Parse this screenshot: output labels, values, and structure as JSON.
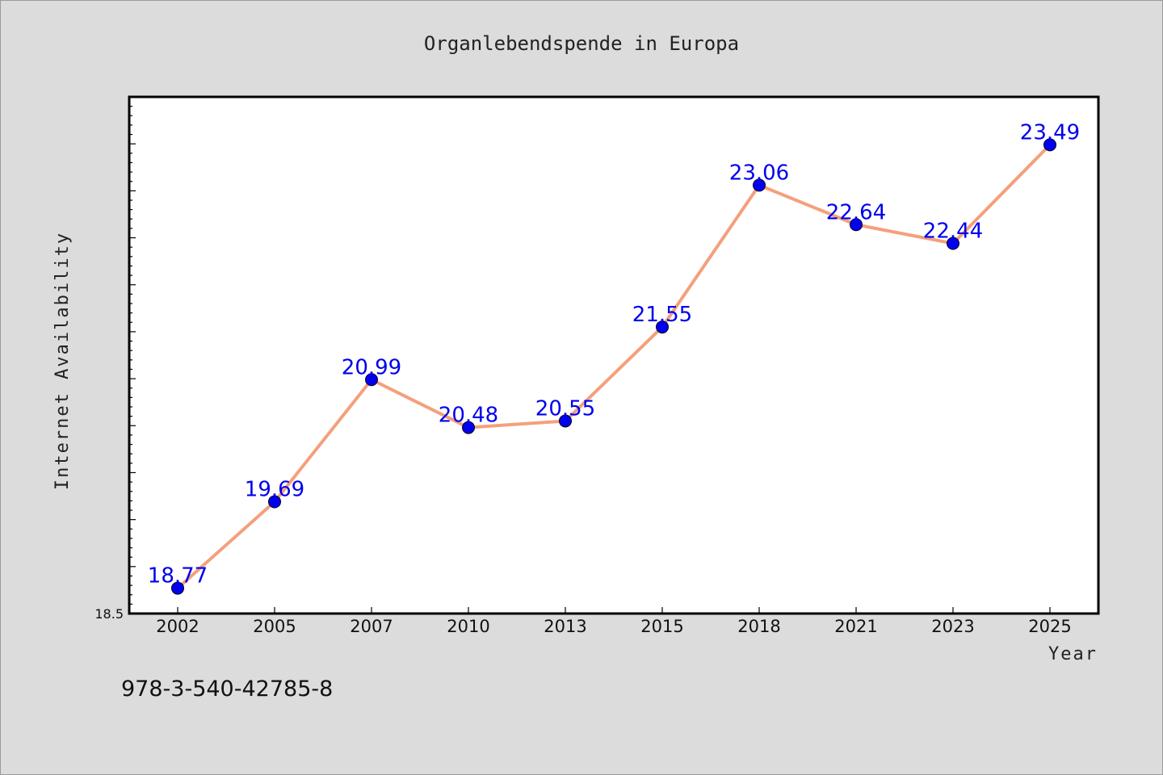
{
  "chart_data": {
    "type": "line",
    "title": "Organlebendspende in Europa",
    "xlabel": "Year",
    "ylabel": "Internet Availability",
    "categories": [
      "2002",
      "2005",
      "2007",
      "2010",
      "2013",
      "2015",
      "2018",
      "2021",
      "2023",
      "2025"
    ],
    "series": [
      {
        "values": [
          18.77,
          19.69,
          20.99,
          20.48,
          20.55,
          21.55,
          23.06,
          22.64,
          22.44,
          23.49
        ],
        "labels": [
          "18.77",
          "19.69",
          "20.99",
          "20.48",
          "20.55",
          "21.55",
          "23.06",
          "22.64",
          "22.44",
          "23.49"
        ]
      }
    ],
    "ylim": [
      18.5,
      24.0
    ],
    "ymin_label": "18.5",
    "grid": false,
    "legend": "none",
    "line_color": "#f4a07c",
    "marker_color": "#0000ee"
  },
  "footnote": "978-3-540-42785-8",
  "colors": {
    "background": "#dcdcdc",
    "plot_background": "#ffffff",
    "data_label": "#0000ee"
  }
}
